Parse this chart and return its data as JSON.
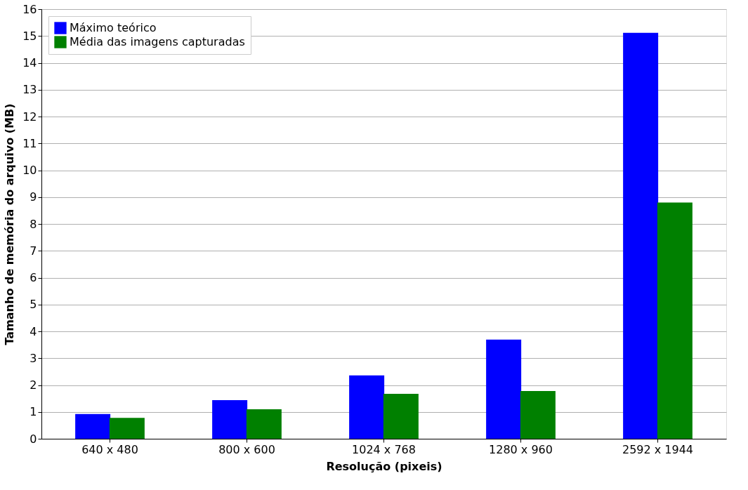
{
  "chart_data": {
    "type": "bar",
    "xlabel": "Resolução (pixeis)",
    "ylabel": "Tamanho de memória do arquivo (MB)",
    "categories": [
      "640 x 480",
      "800 x 600",
      "1024 x 768",
      "1280 x 960",
      "2592 x 1944"
    ],
    "series": [
      {
        "name": "Máximo teórico",
        "color": "#0000ff",
        "values": [
          0.92,
          1.44,
          2.36,
          3.69,
          15.12
        ]
      },
      {
        "name": "Média das imagens capturadas",
        "color": "#008000",
        "values": [
          0.78,
          1.1,
          1.67,
          1.78,
          8.8
        ]
      }
    ],
    "ylim": [
      0,
      16
    ],
    "yticks": [
      0,
      1,
      2,
      3,
      4,
      5,
      6,
      7,
      8,
      9,
      10,
      11,
      12,
      13,
      14,
      15,
      16
    ],
    "grid": "y",
    "legend": "top left"
  }
}
